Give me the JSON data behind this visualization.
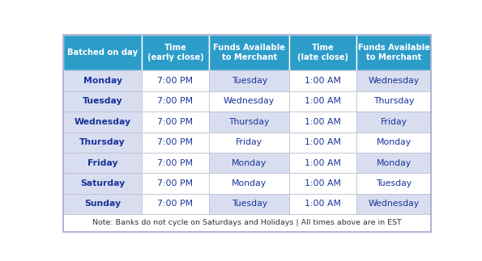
{
  "headers": [
    "Batched on day",
    "Time\n(early close)",
    "Funds Available\nto Merchant",
    "Time\n(late close)",
    "Funds Available\nto Merchant"
  ],
  "rows": [
    [
      "Monday",
      "7:00 PM",
      "Tuesday",
      "1:00 AM",
      "Wednesday"
    ],
    [
      "Tuesday",
      "7:00 PM",
      "Wednesday",
      "1:00 AM",
      "Thursday"
    ],
    [
      "Wednesday",
      "7:00 PM",
      "Thursday",
      "1:00 AM",
      "Friday"
    ],
    [
      "Thursday",
      "7:00 PM",
      "Friday",
      "1:00 AM",
      "Monday"
    ],
    [
      "Friday",
      "7:00 PM",
      "Monday",
      "1:00 AM",
      "Monday"
    ],
    [
      "Saturday",
      "7:00 PM",
      "Monday",
      "1:00 AM",
      "Tuesday"
    ],
    [
      "Sunday",
      "7:00 PM",
      "Tuesday",
      "1:00 AM",
      "Wednesday"
    ]
  ],
  "footer": "Note: Banks do not cycle on Saturdays and Holidays | All times above are in EST",
  "header_bg": "#2C9DC9",
  "header_text": "#FFFFFF",
  "day_col_bg": "#D8DEF0",
  "time_col_bg": "#FFFFFF",
  "funds_col_bg_odd": "#D8DEF0",
  "funds_col_bg_even": "#FFFFFF",
  "day_text": "#1A3399",
  "cell_text": "#1A3399",
  "footer_bg": "#FFFFFF",
  "footer_text": "#333333",
  "border_color": "#BBBBCC",
  "figwidth": 5.95,
  "figheight": 3.23,
  "dpi": 100
}
